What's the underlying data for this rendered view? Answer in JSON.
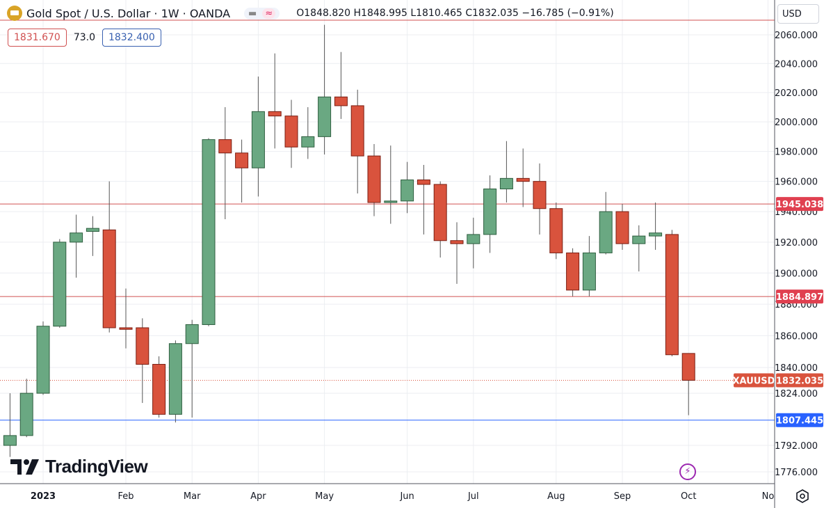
{
  "header": {
    "title": "Gold Spot / U.S. Dollar · 1W · OANDA",
    "pill_icons": [
      "minus-icon",
      "wave-icon"
    ],
    "open": "O1848.820",
    "high": "H1848.995",
    "low": "L1810.465",
    "close": "C1832.035",
    "change": "−16.785 (−0.91%)"
  },
  "quotes": {
    "sell": "1831.670",
    "spread": "73.0",
    "buy": "1832.400"
  },
  "currency_button": "USD",
  "brand": "TradingView",
  "colors": {
    "up": "#6aa882",
    "down": "#d9533d",
    "up_border": "#2e5e3f",
    "down_border": "#7a1e12",
    "level_red": "#d05050",
    "level_blue": "#2962ff",
    "price_label": "#d9533d"
  },
  "chart_data": {
    "type": "candlestick",
    "symbol": "XAUUSD",
    "y_scale": "log",
    "ylim": [
      1768,
      2070
    ],
    "y_ticks": [
      "2060.000",
      "2040.000",
      "2020.000",
      "2000.000",
      "1980.000",
      "1960.000",
      "1940.000",
      "1920.000",
      "1900.000",
      "1880.000",
      "1860.000",
      "1840.000",
      "1824.000",
      "1792.000",
      "1776.000"
    ],
    "x_ticks": [
      {
        "label": "2023",
        "bar": 2,
        "bold": true
      },
      {
        "label": "Feb",
        "bar": 7
      },
      {
        "label": "Mar",
        "bar": 11
      },
      {
        "label": "Apr",
        "bar": 15
      },
      {
        "label": "May",
        "bar": 19
      },
      {
        "label": "Jun",
        "bar": 24
      },
      {
        "label": "Jul",
        "bar": 28
      },
      {
        "label": "Aug",
        "bar": 33
      },
      {
        "label": "Sep",
        "bar": 37
      },
      {
        "label": "Oct",
        "bar": 41
      },
      {
        "label": "No",
        "bar": 45.8
      }
    ],
    "grid": true,
    "candles_ohlc": [
      [
        1792,
        1824,
        1785,
        1798
      ],
      [
        1798,
        1833,
        1797,
        1824
      ],
      [
        1824,
        1869,
        1823,
        1866
      ],
      [
        1866,
        1922,
        1865,
        1920
      ],
      [
        1920,
        1938,
        1897,
        1926
      ],
      [
        1927,
        1937,
        1911,
        1929
      ],
      [
        1928,
        1960,
        1862,
        1865
      ],
      [
        1865,
        1890,
        1852,
        1864
      ],
      [
        1865,
        1871,
        1818,
        1842
      ],
      [
        1842,
        1847,
        1809,
        1811
      ],
      [
        1811,
        1857,
        1806,
        1855
      ],
      [
        1855,
        1870,
        1809,
        1867
      ],
      [
        1867,
        1989,
        1866,
        1988
      ],
      [
        1988,
        2010,
        1935,
        1979
      ],
      [
        1979,
        1988,
        1946,
        1969
      ],
      [
        1969,
        2031,
        1950,
        2007
      ],
      [
        2007,
        2047,
        1982,
        2004
      ],
      [
        2004,
        2015,
        1969,
        1983
      ],
      [
        1983,
        2010,
        1975,
        1990
      ],
      [
        1990,
        2067,
        1978,
        2017
      ],
      [
        2017,
        2048,
        2002,
        2011
      ],
      [
        2011,
        2022,
        1952,
        1977
      ],
      [
        1977,
        1985,
        1937,
        1946
      ],
      [
        1946,
        1984,
        1932,
        1947
      ],
      [
        1947,
        1973,
        1939,
        1961
      ],
      [
        1961,
        1971,
        1925,
        1958
      ],
      [
        1958,
        1960,
        1910,
        1921
      ],
      [
        1921,
        1933,
        1893,
        1919
      ],
      [
        1919,
        1936,
        1903,
        1925
      ],
      [
        1925,
        1964,
        1913,
        1955
      ],
      [
        1955,
        1987,
        1946,
        1962
      ],
      [
        1962,
        1982,
        1943,
        1960
      ],
      [
        1960,
        1972,
        1925,
        1942
      ],
      [
        1942,
        1946,
        1909,
        1913
      ],
      [
        1913,
        1916,
        1885,
        1889
      ],
      [
        1889,
        1924,
        1885,
        1913
      ],
      [
        1913,
        1953,
        1912,
        1940
      ],
      [
        1940,
        1945,
        1915,
        1919
      ],
      [
        1919,
        1931,
        1901,
        1924
      ],
      [
        1924,
        1946,
        1915,
        1926
      ],
      [
        1925,
        1928,
        1847,
        1848
      ],
      [
        1848.82,
        1848.995,
        1810.465,
        1832.035
      ]
    ],
    "levels": [
      {
        "price": 1945.038,
        "label": "1945.038",
        "color": "#d05050"
      },
      {
        "price": 1884.897,
        "label": "1884.897",
        "color": "#d05050"
      },
      {
        "price": 1807.445,
        "label": "1807.445",
        "color": "#2962ff"
      }
    ],
    "last_price": {
      "price": 1832.035,
      "label": "1832.035",
      "symbol": "XAUUSD"
    }
  }
}
